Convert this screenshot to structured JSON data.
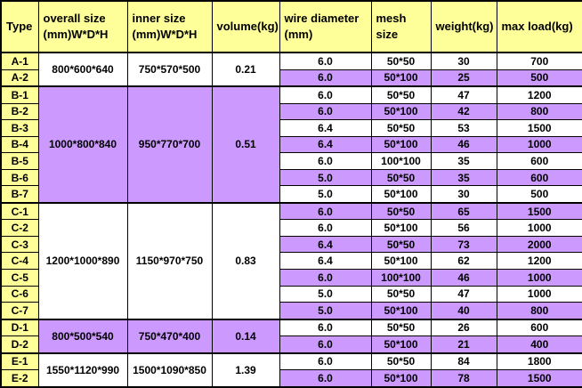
{
  "colors": {
    "header_yellow": "#ffff99",
    "row_purple": "#cc99ff",
    "group_purple": "#cc99ff",
    "white": "#ffffff",
    "border": "#000000",
    "text": "#000000"
  },
  "table": {
    "headers": [
      "Type",
      "overall size\n(mm)W*D*H",
      "inner size\n(mm)W*D*H",
      "volume(kg)",
      "wire diameter\n(mm)",
      "mesh size",
      "weight(kg)",
      "max load(kg)"
    ],
    "groups": [
      {
        "overall": "800*600*640",
        "inner": "750*570*500",
        "volume": "0.21",
        "bg": "white",
        "rows": [
          {
            "type": "A-1",
            "wire": "6.0",
            "mesh": "50*50",
            "weight": "30",
            "load": "700"
          },
          {
            "type": "A-2",
            "wire": "6.0",
            "mesh": "50*100",
            "weight": "25",
            "load": "500"
          }
        ]
      },
      {
        "overall": "1000*800*840",
        "inner": "950*770*700",
        "volume": "0.51",
        "bg": "purple",
        "rows": [
          {
            "type": "B-1",
            "wire": "6.0",
            "mesh": "50*50",
            "weight": "47",
            "load": "1200"
          },
          {
            "type": "B-2",
            "wire": "6.0",
            "mesh": "50*100",
            "weight": "42",
            "load": "800"
          },
          {
            "type": "B-3",
            "wire": "6.4",
            "mesh": "50*50",
            "weight": "53",
            "load": "1500"
          },
          {
            "type": "B-4",
            "wire": "6.4",
            "mesh": "50*100",
            "weight": "46",
            "load": "1000"
          },
          {
            "type": "B-5",
            "wire": "6.0",
            "mesh": "100*100",
            "weight": "35",
            "load": "600"
          },
          {
            "type": "B-6",
            "wire": "5.0",
            "mesh": "50*50",
            "weight": "35",
            "load": "600"
          },
          {
            "type": "B-7",
            "wire": "5.0",
            "mesh": "50*100",
            "weight": "30",
            "load": "500"
          }
        ]
      },
      {
        "overall": "1200*1000*890",
        "inner": "1150*970*750",
        "volume": "0.83",
        "bg": "white",
        "rows": [
          {
            "type": "C-1",
            "wire": "6.0",
            "mesh": "50*50",
            "weight": "65",
            "load": "1500"
          },
          {
            "type": "C-2",
            "wire": "6.0",
            "mesh": "50*100",
            "weight": "56",
            "load": "1000"
          },
          {
            "type": "C-3",
            "wire": "6.4",
            "mesh": "50*50",
            "weight": "73",
            "load": "2000"
          },
          {
            "type": "C-4",
            "wire": "6.4",
            "mesh": "50*100",
            "weight": "62",
            "load": "1200"
          },
          {
            "type": "C-5",
            "wire": "6.0",
            "mesh": "100*100",
            "weight": "46",
            "load": "1000"
          },
          {
            "type": "C-6",
            "wire": "5.0",
            "mesh": "50*50",
            "weight": "47",
            "load": "1000"
          },
          {
            "type": "C-7",
            "wire": "5.0",
            "mesh": "50*100",
            "weight": "40",
            "load": "800"
          }
        ]
      },
      {
        "overall": "800*500*540",
        "inner": "750*470*400",
        "volume": "0.14",
        "bg": "purple",
        "rows": [
          {
            "type": "D-1",
            "wire": "6.0",
            "mesh": "50*50",
            "weight": "26",
            "load": "600"
          },
          {
            "type": "D-2",
            "wire": "6.0",
            "mesh": "50*100",
            "weight": "21",
            "load": "400"
          }
        ]
      },
      {
        "overall": "1550*1120*990",
        "inner": "1500*1090*850",
        "volume": "1.39",
        "bg": "white",
        "rows": [
          {
            "type": "E-1",
            "wire": "6.0",
            "mesh": "50*50",
            "weight": "84",
            "load": "1800"
          },
          {
            "type": "E-2",
            "wire": "6.0",
            "mesh": "50*100",
            "weight": "78",
            "load": "1500"
          }
        ]
      }
    ]
  },
  "chart_data": {
    "type": "table",
    "columns": [
      "Type",
      "overall size (mm)W*D*H",
      "inner size (mm)W*D*H",
      "volume(kg)",
      "wire diameter (mm)",
      "mesh size",
      "weight(kg)",
      "max load(kg)"
    ],
    "rows": [
      [
        "A-1",
        "800*600*640",
        "750*570*500",
        "0.21",
        "6.0",
        "50*50",
        "30",
        "700"
      ],
      [
        "A-2",
        "800*600*640",
        "750*570*500",
        "0.21",
        "6.0",
        "50*100",
        "25",
        "500"
      ],
      [
        "B-1",
        "1000*800*840",
        "950*770*700",
        "0.51",
        "6.0",
        "50*50",
        "47",
        "1200"
      ],
      [
        "B-2",
        "1000*800*840",
        "950*770*700",
        "0.51",
        "6.0",
        "50*100",
        "42",
        "800"
      ],
      [
        "B-3",
        "1000*800*840",
        "950*770*700",
        "0.51",
        "6.4",
        "50*50",
        "53",
        "1500"
      ],
      [
        "B-4",
        "1000*800*840",
        "950*770*700",
        "0.51",
        "6.4",
        "50*100",
        "46",
        "1000"
      ],
      [
        "B-5",
        "1000*800*840",
        "950*770*700",
        "0.51",
        "6.0",
        "100*100",
        "35",
        "600"
      ],
      [
        "B-6",
        "1000*800*840",
        "950*770*700",
        "0.51",
        "5.0",
        "50*50",
        "35",
        "600"
      ],
      [
        "B-7",
        "1000*800*840",
        "950*770*700",
        "0.51",
        "5.0",
        "50*100",
        "30",
        "500"
      ],
      [
        "C-1",
        "1200*1000*890",
        "1150*970*750",
        "0.83",
        "6.0",
        "50*50",
        "65",
        "1500"
      ],
      [
        "C-2",
        "1200*1000*890",
        "1150*970*750",
        "0.83",
        "6.0",
        "50*100",
        "56",
        "1000"
      ],
      [
        "C-3",
        "1200*1000*890",
        "1150*970*750",
        "0.83",
        "6.4",
        "50*50",
        "73",
        "2000"
      ],
      [
        "C-4",
        "1200*1000*890",
        "1150*970*750",
        "0.83",
        "6.4",
        "50*100",
        "62",
        "1200"
      ],
      [
        "C-5",
        "1200*1000*890",
        "1150*970*750",
        "0.83",
        "6.0",
        "100*100",
        "46",
        "1000"
      ],
      [
        "C-6",
        "1200*1000*890",
        "1150*970*750",
        "0.83",
        "5.0",
        "50*50",
        "47",
        "1000"
      ],
      [
        "C-7",
        "1200*1000*890",
        "1150*970*750",
        "0.83",
        "5.0",
        "50*100",
        "40",
        "800"
      ],
      [
        "D-1",
        "800*500*540",
        "750*470*400",
        "0.14",
        "6.0",
        "50*50",
        "26",
        "600"
      ],
      [
        "D-2",
        "800*500*540",
        "750*470*400",
        "0.14",
        "6.0",
        "50*100",
        "21",
        "400"
      ],
      [
        "E-1",
        "1550*1120*990",
        "1500*1090*850",
        "1.39",
        "6.0",
        "50*50",
        "84",
        "1800"
      ],
      [
        "E-2",
        "1550*1120*990",
        "1500*1090*850",
        "1.39",
        "6.0",
        "50*100",
        "78",
        "1500"
      ]
    ]
  }
}
